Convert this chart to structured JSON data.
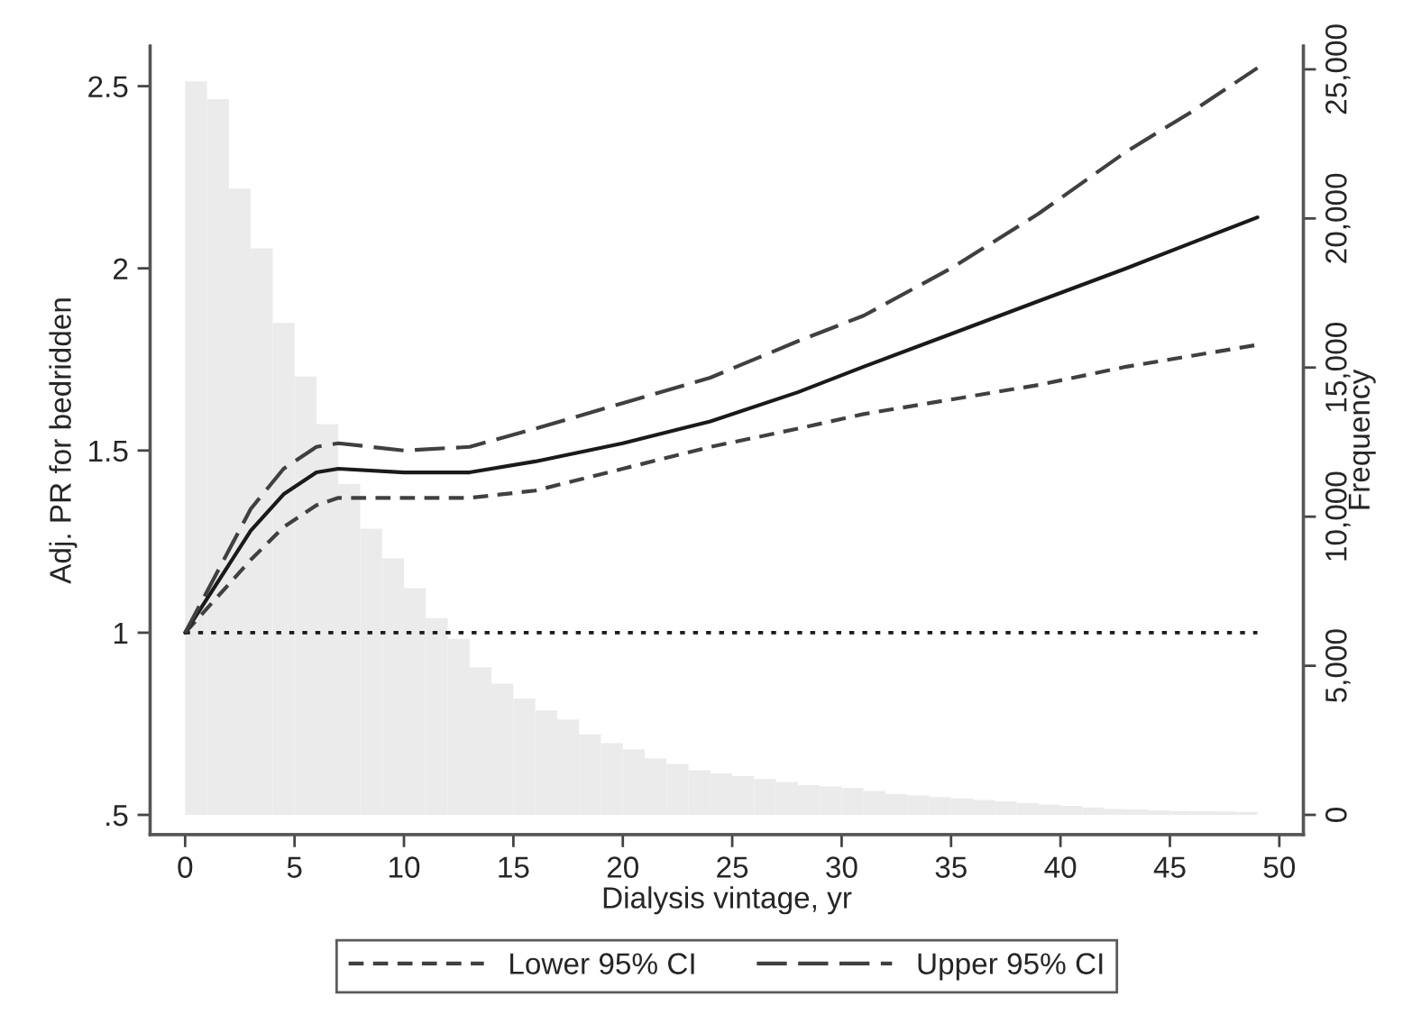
{
  "chart_data": {
    "type": "line",
    "xlabel": "Dialysis vintage, yr",
    "ylabel": "Adj. PR for bedridden",
    "y2label": "Frequency",
    "xlim": [
      -1.6,
      51.1
    ],
    "xticks": [
      0,
      5,
      10,
      15,
      20,
      25,
      30,
      35,
      40,
      45,
      50
    ],
    "ylim": [
      0.446,
      2.61
    ],
    "yticks": [
      {
        "value": 0.5,
        "label": ".5"
      },
      1,
      1.5,
      2,
      2.5
    ],
    "y2lim": [
      -660,
      25780
    ],
    "y2ticks": [
      {
        "value": 0,
        "label": "0"
      },
      {
        "value": 5000,
        "label": "5,000"
      },
      {
        "value": 10000,
        "label": "10,000"
      },
      {
        "value": 15000,
        "label": "15,000"
      },
      {
        "value": 20000,
        "label": "20,000"
      },
      {
        "value": 25000,
        "label": "25,000"
      }
    ],
    "series": [
      {
        "type": "histogram",
        "axis": "y2",
        "color": "#ebebeb",
        "bins": [
          0,
          1,
          2,
          3,
          4,
          5,
          6,
          7,
          8,
          9,
          10,
          11,
          12,
          13,
          14,
          15,
          16,
          17,
          18,
          19,
          20,
          21,
          22,
          23,
          24,
          25,
          26,
          27,
          28,
          29,
          30,
          31,
          32,
          33,
          34,
          35,
          36,
          37,
          38,
          39,
          40,
          41,
          42,
          43,
          44,
          45,
          46,
          47,
          48,
          49
        ],
        "values": [
          24600,
          24000,
          21000,
          19000,
          16500,
          14700,
          13100,
          11100,
          9600,
          8600,
          7600,
          6600,
          5900,
          4950,
          4400,
          3900,
          3500,
          3200,
          2700,
          2400,
          2200,
          1900,
          1700,
          1500,
          1400,
          1300,
          1200,
          1100,
          1000,
          950,
          900,
          800,
          700,
          650,
          600,
          550,
          500,
          450,
          400,
          350,
          300,
          250,
          200,
          180,
          150,
          130,
          120,
          110,
          100
        ]
      },
      {
        "name": "Lower 95% CI",
        "color": "#404040",
        "line_style": "dashed",
        "x": [
          0,
          1.5,
          3,
          4.5,
          6,
          7,
          10,
          13,
          16,
          20,
          24,
          28,
          31,
          35,
          39,
          43,
          46,
          49
        ],
        "values": [
          1,
          1.1,
          1.2,
          1.29,
          1.35,
          1.37,
          1.37,
          1.37,
          1.39,
          1.45,
          1.51,
          1.56,
          1.6,
          1.64,
          1.68,
          1.73,
          1.76,
          1.79
        ]
      },
      {
        "color": "#1a1a1a",
        "line_style": "solid",
        "x": [
          0,
          1.5,
          3,
          4.5,
          6,
          7,
          10,
          13,
          16,
          20,
          24,
          28,
          31,
          35,
          39,
          43,
          46,
          49
        ],
        "values": [
          1,
          1.14,
          1.28,
          1.38,
          1.44,
          1.45,
          1.44,
          1.44,
          1.47,
          1.52,
          1.58,
          1.66,
          1.73,
          1.82,
          1.91,
          2.0,
          2.07,
          2.14
        ]
      },
      {
        "name": "Upper 95% CI",
        "color": "#404040",
        "line_style": "dashed",
        "x": [
          0,
          1.5,
          3,
          4.5,
          6,
          7,
          10,
          13,
          16,
          20,
          24,
          28,
          31,
          35,
          39,
          43,
          46,
          49
        ],
        "values": [
          1,
          1.17,
          1.34,
          1.45,
          1.51,
          1.52,
          1.5,
          1.51,
          1.56,
          1.63,
          1.7,
          1.8,
          1.87,
          2.0,
          2.15,
          2.32,
          2.43,
          2.55
        ]
      }
    ],
    "ref_lines": [
      {
        "axis": "y",
        "value": 1,
        "line_style": "dotted",
        "color": "#1a1a1a"
      }
    ],
    "grid": false,
    "legend": "bottom"
  }
}
